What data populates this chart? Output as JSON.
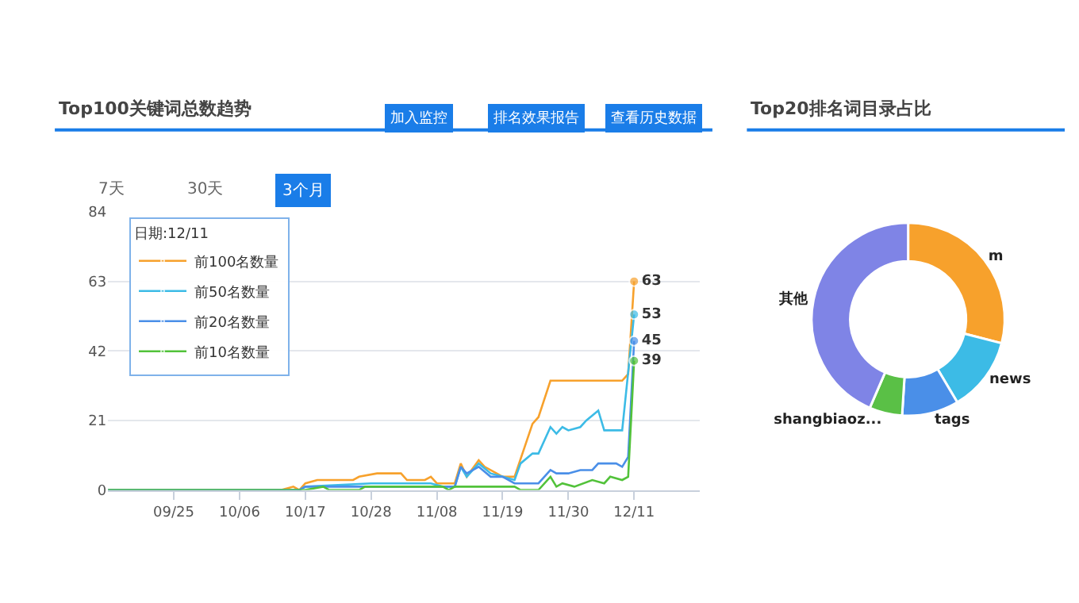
{
  "chart_data": [
    {
      "type": "line",
      "title": "Top100关键词总数趋势",
      "annotations": [
        "加入监控",
        "排名效果报告",
        "查看历史数据",
        "7天",
        "30天",
        "3个月"
      ],
      "legend_title": "日期:12/11",
      "legend": "top left",
      "grid": "y",
      "marker": "none",
      "line_style": "solid",
      "xlim": [
        "--09-14",
        "--12-22"
      ],
      "xticks": [
        {
          "value": "--09-25",
          "label": "09/25"
        },
        {
          "value": "--10-06",
          "label": "10/06"
        },
        {
          "value": "--10-17",
          "label": "10/17"
        },
        {
          "value": "--10-28",
          "label": "10/28"
        },
        {
          "value": "--11-08",
          "label": "11/08"
        },
        {
          "value": "--11-19",
          "label": "11/19"
        },
        {
          "value": "--11-30",
          "label": "11/30"
        },
        {
          "value": "--12-11",
          "label": "12/11"
        }
      ],
      "ylim": [
        0,
        84
      ],
      "yticks": [
        0,
        21,
        42,
        63,
        84
      ],
      "series": [
        {
          "name": "前100名数量",
          "color": "#f7a12c",
          "x": [
            "--09-14",
            "--10-13",
            "--10-15",
            "--10-16",
            "--10-17",
            "--10-19",
            "--10-25",
            "--10-26",
            "--10-29",
            "--11-02",
            "--11-03",
            "--11-06",
            "--11-07",
            "--11-08",
            "--11-11",
            "--11-12",
            "--11-13",
            "--11-15",
            "--11-16",
            "--11-18",
            "--11-19",
            "--11-21",
            "--11-24",
            "--11-25",
            "--11-27",
            "--12-09",
            "--12-10",
            "--12-11"
          ],
          "values": [
            0,
            0,
            1,
            0,
            2,
            3,
            3,
            4,
            5,
            5,
            3,
            3,
            4,
            2,
            2,
            8,
            4,
            9,
            7,
            5,
            4,
            4,
            20,
            22,
            33,
            33,
            35,
            63
          ],
          "value_labels": [
            null,
            null,
            null,
            null,
            null,
            null,
            null,
            null,
            null,
            null,
            null,
            null,
            null,
            null,
            null,
            null,
            null,
            null,
            null,
            null,
            null,
            null,
            null,
            null,
            null,
            null,
            null,
            "63"
          ]
        },
        {
          "name": "前50名数量",
          "color": "#3cbbe6",
          "x": [
            "--09-14",
            "--10-16",
            "--10-17",
            "--10-28",
            "--11-07",
            "--11-09",
            "--11-11",
            "--11-12",
            "--11-13",
            "--11-15",
            "--11-17",
            "--11-19",
            "--11-21",
            "--11-22",
            "--11-24",
            "--11-25",
            "--11-27",
            "--11-28",
            "--11-29",
            "--11-30",
            "--12-02",
            "--12-03",
            "--12-05",
            "--12-06",
            "--12-09",
            "--12-11"
          ],
          "values": [
            0,
            0,
            1,
            2,
            2,
            1,
            1,
            7,
            4,
            8,
            5,
            4,
            3,
            8,
            11,
            11,
            19,
            17,
            19,
            18,
            19,
            21,
            24,
            18,
            18,
            53
          ],
          "value_labels": [
            null,
            null,
            null,
            null,
            null,
            null,
            null,
            null,
            null,
            null,
            null,
            null,
            null,
            null,
            null,
            null,
            null,
            null,
            null,
            null,
            null,
            null,
            null,
            null,
            null,
            "53"
          ]
        },
        {
          "name": "前20名数量",
          "color": "#4a8fe8",
          "x": [
            "--09-14",
            "--10-16",
            "--10-17",
            "--10-28",
            "--11-09",
            "--11-11",
            "--11-12",
            "--11-13",
            "--11-15",
            "--11-17",
            "--11-19",
            "--11-21",
            "--11-25",
            "--11-27",
            "--11-28",
            "--11-30",
            "--12-02",
            "--12-04",
            "--12-05",
            "--12-08",
            "--12-09",
            "--12-10",
            "--12-11"
          ],
          "values": [
            0,
            0,
            1,
            1,
            1,
            1,
            7,
            5,
            7,
            4,
            4,
            2,
            2,
            6,
            5,
            5,
            6,
            6,
            8,
            8,
            7,
            10,
            45
          ],
          "value_labels": [
            null,
            null,
            null,
            null,
            null,
            null,
            null,
            null,
            null,
            null,
            null,
            null,
            null,
            null,
            null,
            null,
            null,
            null,
            null,
            null,
            null,
            null,
            "45"
          ]
        },
        {
          "name": "前10名数量",
          "color": "#52c23a",
          "x": [
            "--09-14",
            "--10-16",
            "--10-17",
            "--10-20",
            "--10-21",
            "--10-26",
            "--10-27",
            "--11-09",
            "--11-10",
            "--11-11",
            "--11-21",
            "--11-22",
            "--11-25",
            "--11-27",
            "--11-28",
            "--11-29",
            "--12-01",
            "--12-04",
            "--12-06",
            "--12-07",
            "--12-09",
            "--12-10",
            "--12-11"
          ],
          "values": [
            0,
            0,
            0,
            1,
            0,
            0,
            1,
            1,
            0,
            1,
            1,
            0,
            0,
            4,
            1,
            2,
            1,
            3,
            2,
            4,
            3,
            4,
            39
          ],
          "value_labels": [
            null,
            null,
            null,
            null,
            null,
            null,
            null,
            null,
            null,
            null,
            null,
            null,
            null,
            null,
            null,
            null,
            null,
            null,
            null,
            null,
            null,
            null,
            "39"
          ]
        }
      ]
    },
    {
      "type": "donut",
      "title": "Top20排名词目录占比",
      "categories": [
        "m",
        "news",
        "tags",
        "shangbiaoz...",
        "其他"
      ],
      "values": [
        29,
        12.5,
        9.5,
        5.5,
        43.5
      ],
      "colors": [
        "#f7a12c",
        "#3cbbe6",
        "#4a8fe8",
        "#5ac046",
        "#7f84e6"
      ]
    }
  ]
}
